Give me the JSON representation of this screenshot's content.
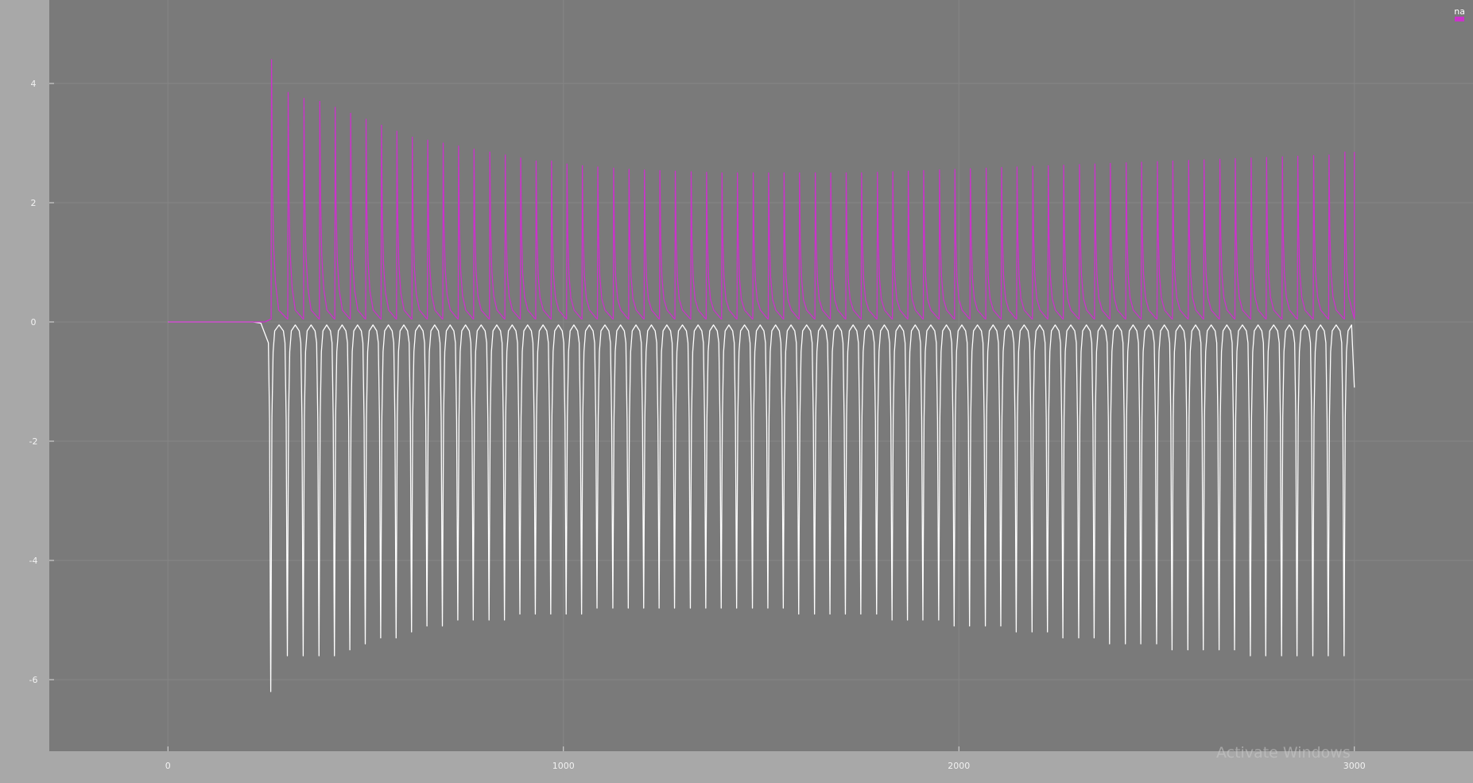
{
  "chart_data": {
    "type": "line",
    "title": "",
    "xlabel": "",
    "ylabel": "",
    "xlim": [
      -300,
      3300
    ],
    "ylim": [
      -7.2,
      5.4
    ],
    "grid": true,
    "legend_placement": "top-right",
    "x_ticks": [
      0,
      1000,
      2000,
      3000
    ],
    "y_ticks": [
      -6,
      -4,
      -2,
      0,
      2,
      4
    ],
    "x_tick_labels": [
      "0",
      "1000",
      "2000",
      "3000"
    ],
    "y_tick_labels": [
      "-6",
      "-4",
      "-2",
      "0",
      "2",
      "4"
    ],
    "rest_until": 215,
    "series": [
      {
        "name": "na",
        "color": "#ffffff",
        "spike_times": [
          260,
          302,
          342,
          382,
          421,
          460,
          499,
          538,
          577,
          616,
          655,
          694,
          733,
          772,
          812,
          851,
          890,
          929,
          968,
          1007,
          1046,
          1085,
          1125,
          1164,
          1203,
          1242,
          1281,
          1321,
          1360,
          1399,
          1438,
          1478,
          1517,
          1556,
          1595,
          1635,
          1674,
          1713,
          1752,
          1792,
          1831,
          1870,
          1909,
          1949,
          1988,
          2027,
          2067,
          2106,
          2145,
          2185,
          2224,
          2263,
          2303,
          2342,
          2381,
          2421,
          2460,
          2500,
          2539,
          2579,
          2618,
          2658,
          2697,
          2737,
          2776,
          2816,
          2855,
          2895,
          2934,
          2974
        ],
        "spike_minima": [
          -6.2,
          -5.6,
          -5.6,
          -5.6,
          -5.6,
          -5.5,
          -5.4,
          -5.3,
          -5.3,
          -5.2,
          -5.1,
          -5.1,
          -5.0,
          -5.0,
          -5.0,
          -5.0,
          -4.9,
          -4.9,
          -4.9,
          -4.9,
          -4.9,
          -4.8,
          -4.8,
          -4.8,
          -4.8,
          -4.8,
          -4.8,
          -4.8,
          -4.8,
          -4.8,
          -4.8,
          -4.8,
          -4.8,
          -4.8,
          -4.9,
          -4.9,
          -4.9,
          -4.9,
          -4.9,
          -4.9,
          -5.0,
          -5.0,
          -5.0,
          -5.0,
          -5.1,
          -5.1,
          -5.1,
          -5.1,
          -5.2,
          -5.2,
          -5.2,
          -5.3,
          -5.3,
          -5.3,
          -5.4,
          -5.4,
          -5.4,
          -5.4,
          -5.5,
          -5.5,
          -5.5,
          -5.5,
          -5.5,
          -5.6,
          -5.6,
          -5.6,
          -5.6,
          -5.6,
          -5.6,
          -5.6
        ],
        "end": [
          3000,
          -1.1
        ]
      },
      {
        "name": "",
        "color": "#cc33cc",
        "spike_times": [
          262,
          304,
          344,
          384,
          423,
          462,
          501,
          540,
          579,
          618,
          657,
          696,
          735,
          774,
          814,
          853,
          892,
          931,
          970,
          1009,
          1048,
          1087,
          1127,
          1166,
          1205,
          1244,
          1283,
          1323,
          1362,
          1401,
          1440,
          1480,
          1519,
          1558,
          1597,
          1637,
          1676,
          1715,
          1754,
          1794,
          1833,
          1872,
          1911,
          1951,
          1990,
          2029,
          2069,
          2108,
          2147,
          2187,
          2226,
          2265,
          2305,
          2344,
          2383,
          2423,
          2462,
          2502,
          2541,
          2581,
          2620,
          2660,
          2699,
          2739,
          2778,
          2818,
          2857,
          2897,
          2936,
          2976
        ],
        "spike_peaks": [
          4.4,
          3.85,
          3.75,
          3.7,
          3.6,
          3.5,
          3.4,
          3.3,
          3.2,
          3.1,
          3.05,
          3.0,
          2.95,
          2.9,
          2.85,
          2.8,
          2.75,
          2.7,
          2.7,
          2.65,
          2.62,
          2.6,
          2.58,
          2.56,
          2.55,
          2.54,
          2.53,
          2.52,
          2.51,
          2.5,
          2.5,
          2.5,
          2.5,
          2.5,
          2.5,
          2.5,
          2.5,
          2.5,
          2.5,
          2.51,
          2.52,
          2.53,
          2.54,
          2.55,
          2.56,
          2.57,
          2.58,
          2.59,
          2.6,
          2.61,
          2.62,
          2.63,
          2.64,
          2.65,
          2.66,
          2.67,
          2.68,
          2.69,
          2.7,
          2.71,
          2.72,
          2.73,
          2.74,
          2.75,
          2.76,
          2.77,
          2.78,
          2.79,
          2.8,
          2.85
        ],
        "end": [
          3000,
          2.85
        ]
      }
    ]
  },
  "legend": {
    "entries": [
      {
        "label": "na",
        "color": "#ffffff"
      },
      {
        "label": "",
        "color": "#cc33cc"
      }
    ]
  },
  "watermark": {
    "text": "Activate Windows"
  }
}
